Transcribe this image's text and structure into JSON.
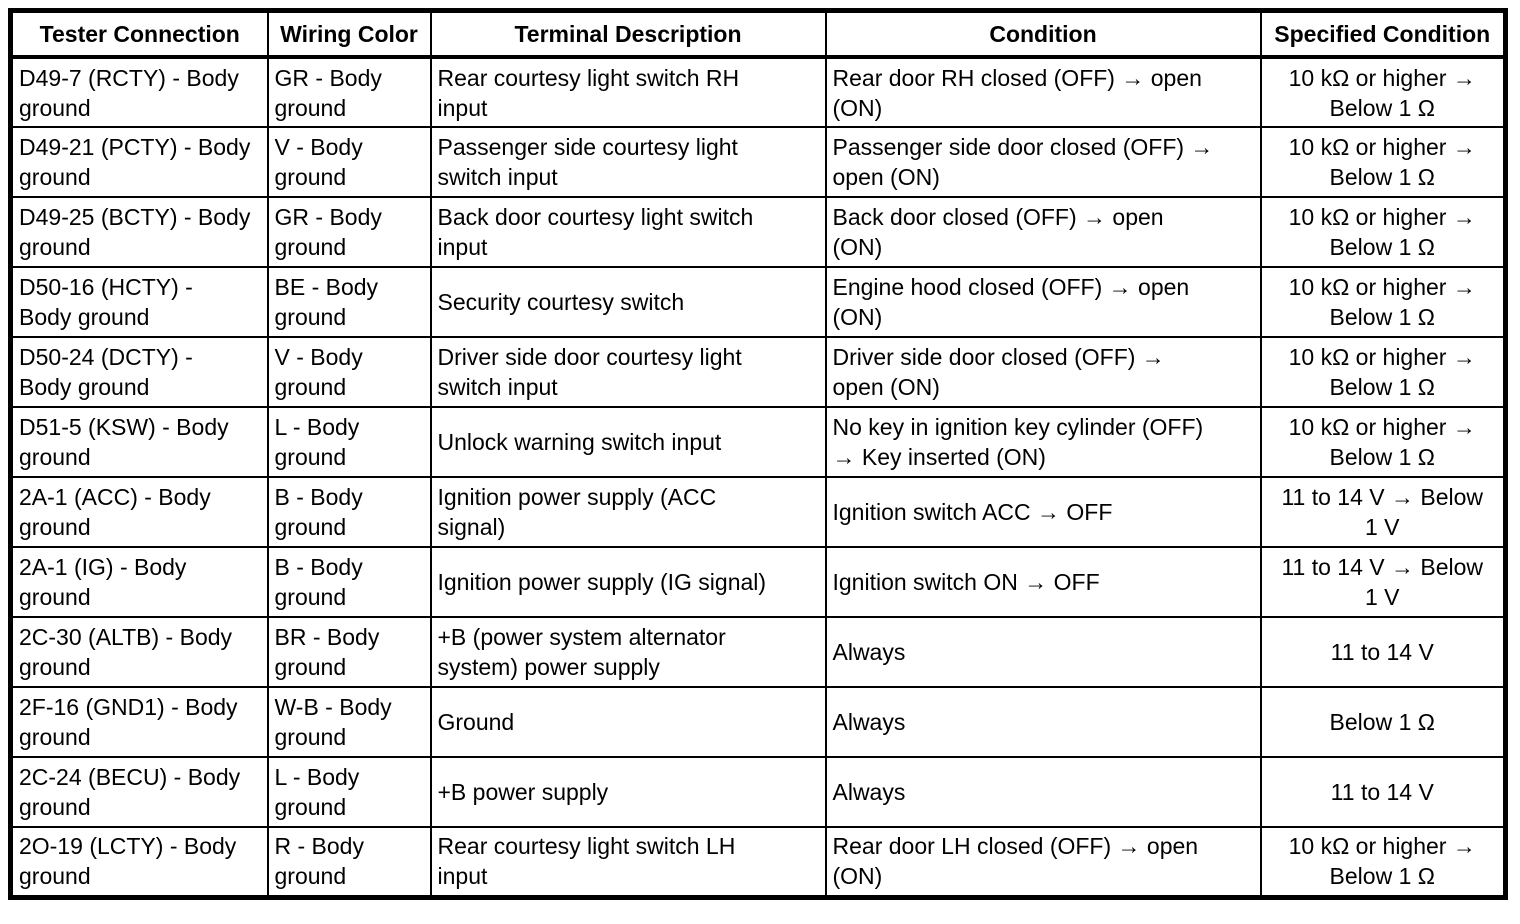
{
  "colors": {
    "background": "#ffffff",
    "border": "#000000",
    "text": "#000000"
  },
  "table": {
    "headers": [
      {
        "id": "tester_connection",
        "label": "Tester Connection"
      },
      {
        "id": "wiring_color",
        "label": "Wiring Color"
      },
      {
        "id": "terminal_description",
        "label": "Terminal Description"
      },
      {
        "id": "condition",
        "label": "Condition"
      },
      {
        "id": "specified_condition",
        "label": "Specified Condition"
      }
    ],
    "rows": [
      {
        "tester_connection": "D49-7 (RCTY) - Body\nground",
        "wiring_color": "GR - Body\nground",
        "terminal_description": "Rear courtesy light switch RH\ninput",
        "condition": "Rear door RH closed (OFF) → open\n(ON)",
        "specified_condition": "10 kΩ or higher →\nBelow 1 Ω"
      },
      {
        "tester_connection": "D49-21 (PCTY) - Body\nground",
        "wiring_color": "V - Body\nground",
        "terminal_description": "Passenger side courtesy light\nswitch input",
        "condition": "Passenger side door closed (OFF) →\nopen (ON)",
        "specified_condition": "10 kΩ or higher →\nBelow 1 Ω"
      },
      {
        "tester_connection": "D49-25 (BCTY) - Body\nground",
        "wiring_color": "GR - Body\nground",
        "terminal_description": "Back door courtesy light switch\ninput",
        "condition": "Back door closed (OFF) → open\n(ON)",
        "specified_condition": "10 kΩ or higher →\nBelow 1 Ω"
      },
      {
        "tester_connection": "D50-16 (HCTY) -\nBody ground",
        "wiring_color": "BE - Body\nground",
        "terminal_description": "Security courtesy switch",
        "condition": "Engine hood closed (OFF) → open\n(ON)",
        "specified_condition": "10 kΩ or higher →\nBelow 1 Ω"
      },
      {
        "tester_connection": "D50-24 (DCTY) -\nBody ground",
        "wiring_color": "V - Body\nground",
        "terminal_description": "Driver side door courtesy light\nswitch input",
        "condition": "Driver side door closed (OFF) →\nopen (ON)",
        "specified_condition": "10 kΩ or higher →\nBelow 1 Ω"
      },
      {
        "tester_connection": "D51-5 (KSW) - Body\nground",
        "wiring_color": "L - Body\nground",
        "terminal_description": "Unlock warning switch input",
        "condition": "No key in ignition key cylinder (OFF)\n→ Key inserted (ON)",
        "specified_condition": "10 kΩ or higher →\nBelow 1 Ω"
      },
      {
        "tester_connection": "2A-1 (ACC) - Body\nground",
        "wiring_color": "B - Body\nground",
        "terminal_description": "Ignition power supply (ACC\nsignal)",
        "condition": "Ignition switch ACC → OFF",
        "specified_condition": "11 to 14 V → Below\n1 V"
      },
      {
        "tester_connection": "2A-1 (IG) - Body\nground",
        "wiring_color": "B - Body\nground",
        "terminal_description": "Ignition power supply (IG signal)",
        "condition": "Ignition switch ON → OFF",
        "specified_condition": "11 to 14 V → Below\n1 V"
      },
      {
        "tester_connection": "2C-30 (ALTB) - Body\nground",
        "wiring_color": "BR - Body\nground",
        "terminal_description": "+B (power system alternator\nsystem) power supply",
        "condition": "Always",
        "specified_condition": "11 to 14 V"
      },
      {
        "tester_connection": "2F-16 (GND1) - Body\nground",
        "wiring_color": "W-B - Body\nground",
        "terminal_description": "Ground",
        "condition": "Always",
        "specified_condition": "Below 1 Ω"
      },
      {
        "tester_connection": "2C-24 (BECU) - Body\nground",
        "wiring_color": "L - Body\nground",
        "terminal_description": "+B power supply",
        "condition": "Always",
        "specified_condition": "11 to 14 V"
      },
      {
        "tester_connection": "2O-19 (LCTY) - Body\nground",
        "wiring_color": "R - Body\nground",
        "terminal_description": "Rear courtesy light switch LH\ninput",
        "condition": "Rear door LH closed (OFF) → open\n(ON)",
        "specified_condition": "10 kΩ or higher →\nBelow 1 Ω"
      }
    ]
  }
}
